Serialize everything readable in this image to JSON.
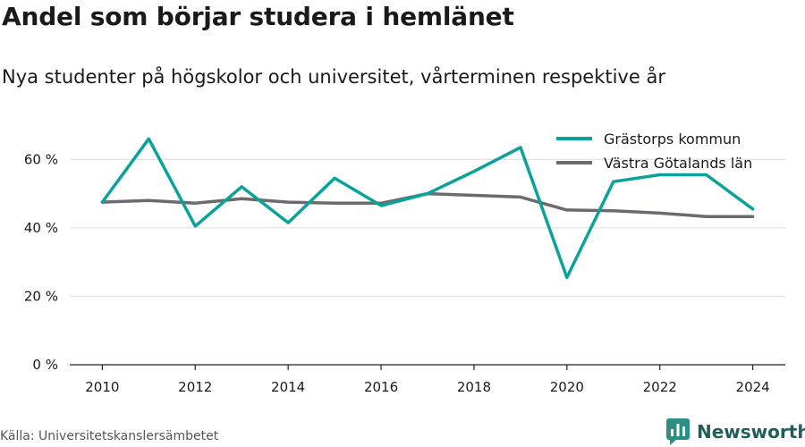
{
  "title": "Andel som börjar studera i hemlänet",
  "subtitle": "Nya studenter på högskolor och universitet, vårterminen respektive år",
  "source": "Källa: Universitetskanslersämbetet",
  "brand": {
    "name": "Newsworthy",
    "icon": "newsworthy-logo-icon",
    "color": "#1f5f59"
  },
  "chart_data": {
    "type": "line",
    "title": "Andel som börjar studera i hemlänet",
    "subtitle": "Nya studenter på högskolor och universitet, vårterminen respektive år",
    "x": [
      2010,
      2011,
      2012,
      2013,
      2014,
      2015,
      2016,
      2017,
      2018,
      2019,
      2020,
      2021,
      2022,
      2023,
      2024
    ],
    "x_ticks": [
      2010,
      2012,
      2014,
      2016,
      2018,
      2020,
      2022,
      2024
    ],
    "y_ticks": [
      {
        "value": 0,
        "label": "0 %"
      },
      {
        "value": 20,
        "label": "20 %"
      },
      {
        "value": 40,
        "label": "40 %"
      },
      {
        "value": 60,
        "label": "60 %"
      }
    ],
    "ylim": [
      0,
      70
    ],
    "xlim": [
      2009.3,
      2024.7
    ],
    "grid": true,
    "legend_position": "top-right",
    "series": [
      {
        "name": "Grästorps kommun",
        "color": "#0aa39a",
        "values": [
          47.5,
          66,
          40.5,
          52,
          41.5,
          54.5,
          46.5,
          50,
          56.5,
          63.5,
          25.5,
          53.5,
          55.5,
          55.5,
          45.5
        ]
      },
      {
        "name": "Västra Götalands län",
        "color": "#6b6b6f",
        "values": [
          47.5,
          48,
          47.2,
          48.5,
          47.5,
          47.2,
          47.2,
          50,
          49.5,
          49,
          45.2,
          45,
          44.3,
          43.3,
          43.3
        ]
      }
    ]
  }
}
